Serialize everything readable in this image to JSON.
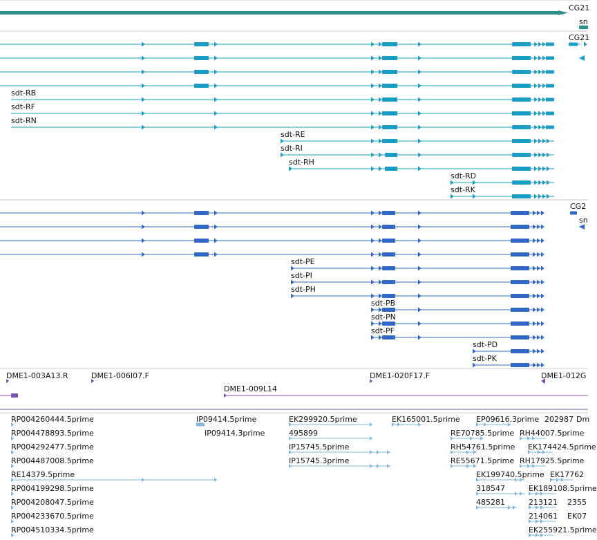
{
  "colors": {
    "gene": "#2e8f8a",
    "transcript": "#1a9dc4",
    "protein": "#3369c6",
    "clone": "#7a52b0",
    "est": "#7fb7e0",
    "divider": "#c8c8c8",
    "text": "#111111"
  },
  "gene_track": {
    "labels": [
      "CG21",
      "sn"
    ]
  },
  "transcript_track": {
    "labels": [
      "CG21",
      "sdt-RB",
      "sdt-RF",
      "sdt-RN",
      "sdt-RE",
      "sdt-RI",
      "sdt-RH",
      "sdt-RD",
      "sdt-RK"
    ]
  },
  "protein_track": {
    "labels": [
      "CG2",
      "sn",
      "sdt-PE",
      "sdt-PI",
      "sdt-PH",
      "sdt-PB",
      "sdt-PN",
      "sdt-PF",
      "sdt-PD",
      "sdt-PK"
    ]
  },
  "clone_track": {
    "labels": [
      "DME1-003A13.R",
      "DME1-006I07.F",
      "DME1-020F17.F",
      "DME1-012G",
      "DME1-009L14"
    ]
  },
  "est_track": {
    "labels": [
      "RP004260444.5prime",
      "RP004478893.5prime",
      "RP004292477.5prime",
      "RP004487008.5prime",
      "RE14379.5prime",
      "RP004199298.5prime",
      "RP004208047.5prime",
      "RP004233670.5prime",
      "RP004510334.5prime",
      "IP09414.5prime",
      "IP09414.3prime",
      "EK299920.5prime",
      "495899",
      "IP15745.5prime",
      "IP15745.3prime",
      "EK165001.5prime",
      "EP09616.3prime",
      "202987",
      "Dm",
      "RE70785.5prime",
      "RH44007.5prime",
      "RH54761.5prime",
      "EK174424.5prime",
      "RE55671.5prime",
      "RH17925.5prime",
      "EK199740.5prime",
      "EK17762",
      "318547",
      "EK189108.5prime",
      "485281",
      "213121",
      "2355",
      "214061",
      "EK07",
      "EK255921.5prime"
    ]
  }
}
